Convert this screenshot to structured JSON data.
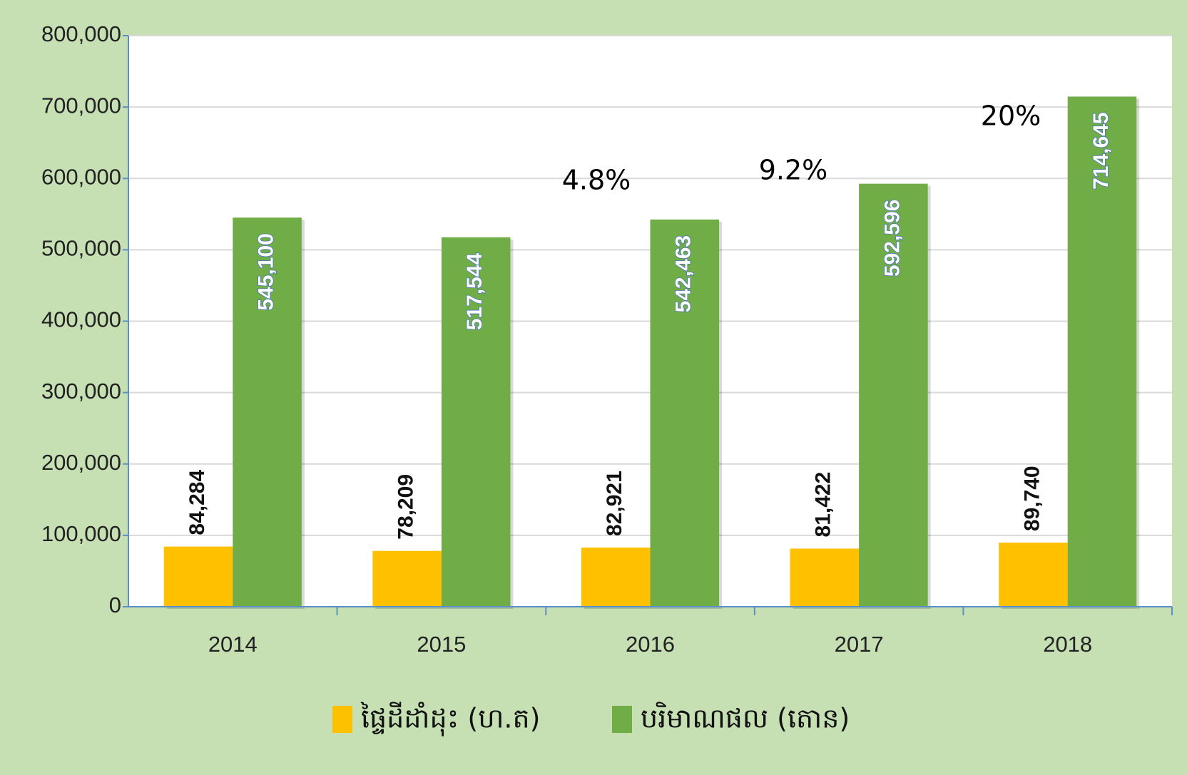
{
  "chart_data": {
    "type": "bar",
    "categories": [
      "2014",
      "2015",
      "2016",
      "2017",
      "2018"
    ],
    "series": [
      {
        "name": "ផ្ទៃដីដាំដុះ (ហ.ត)",
        "color": "#ffc000",
        "values": [
          84284,
          78209,
          82921,
          81422,
          89740
        ],
        "value_labels": [
          "84,284",
          "78,209",
          "82,921",
          "81,422",
          "89,740"
        ]
      },
      {
        "name": "បរិមាណផល (តោន)",
        "color": "#70ad47",
        "values": [
          545100,
          517544,
          542463,
          592596,
          714645
        ],
        "value_labels": [
          "545,100",
          "517,544",
          "542,463",
          "592,596",
          "714,645"
        ]
      }
    ],
    "annotations": [
      "4.8%",
      "9.2%",
      "20%"
    ],
    "ylim": [
      0,
      800000
    ],
    "yticks": [
      0,
      {
        "value": 100000,
        "label": "100,000"
      },
      {
        "value": 200000,
        "label": "200,000"
      },
      {
        "value": 300000,
        "label": "300,000"
      },
      {
        "value": 400000,
        "label": "400,000"
      },
      {
        "value": 500000,
        "label": "500,000"
      },
      {
        "value": 600000,
        "label": "600,000"
      },
      {
        "value": 700000,
        "label": "700,000"
      },
      {
        "value": 800000,
        "label": "800,000"
      }
    ],
    "grid": true,
    "legend": "bottom"
  }
}
